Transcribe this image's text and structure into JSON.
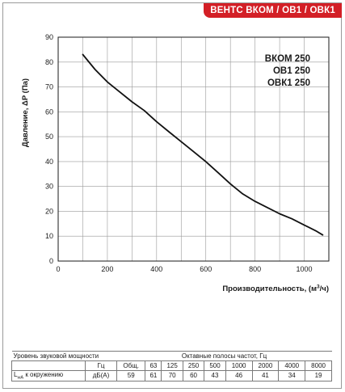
{
  "header": {
    "badge": "ВЕНТС ВКОМ / ОВ1 / ОВК1"
  },
  "chart_data": {
    "type": "line",
    "title": "",
    "xlabel_prefix": "Производительность, (м",
    "xlabel_sup": "3",
    "xlabel_suffix": "/ч)",
    "ylabel": "Давление, ΔP (Па)",
    "xlim": [
      0,
      1100
    ],
    "ylim": [
      0,
      90
    ],
    "xticks": [
      0,
      200,
      400,
      600,
      800,
      1000
    ],
    "yticks": [
      0,
      10,
      20,
      30,
      40,
      50,
      60,
      70,
      80,
      90
    ],
    "grid": true,
    "legend_lines": [
      "ВКОМ 250",
      "ОВ1 250",
      "ОВК1 250"
    ],
    "series": [
      {
        "x": [
          100,
          150,
          200,
          250,
          300,
          350,
          400,
          450,
          500,
          550,
          600,
          650,
          700,
          750,
          800,
          850,
          900,
          950,
          1000,
          1050,
          1075
        ],
        "y": [
          83,
          77,
          72,
          68,
          64,
          60.5,
          56,
          52,
          48,
          44,
          40,
          35.5,
          31,
          27,
          24,
          21.5,
          19,
          17,
          14.5,
          12,
          10.5
        ]
      }
    ]
  },
  "sound_table": {
    "header_left": "Уровень звуковой мощности",
    "header_right": "Октавные полосы частот, Гц",
    "unit_hz": "Гц",
    "col_total": "Общ.",
    "bands": [
      "63",
      "125",
      "250",
      "500",
      "1000",
      "2000",
      "4000",
      "8000"
    ],
    "row_label_L": "L",
    "row_label_sub": "wA",
    "row_label_rest": " к окружению",
    "row_unit": "дБ(А)",
    "row_total": "59",
    "row_values": [
      "61",
      "70",
      "60",
      "43",
      "46",
      "41",
      "34",
      "19"
    ]
  }
}
